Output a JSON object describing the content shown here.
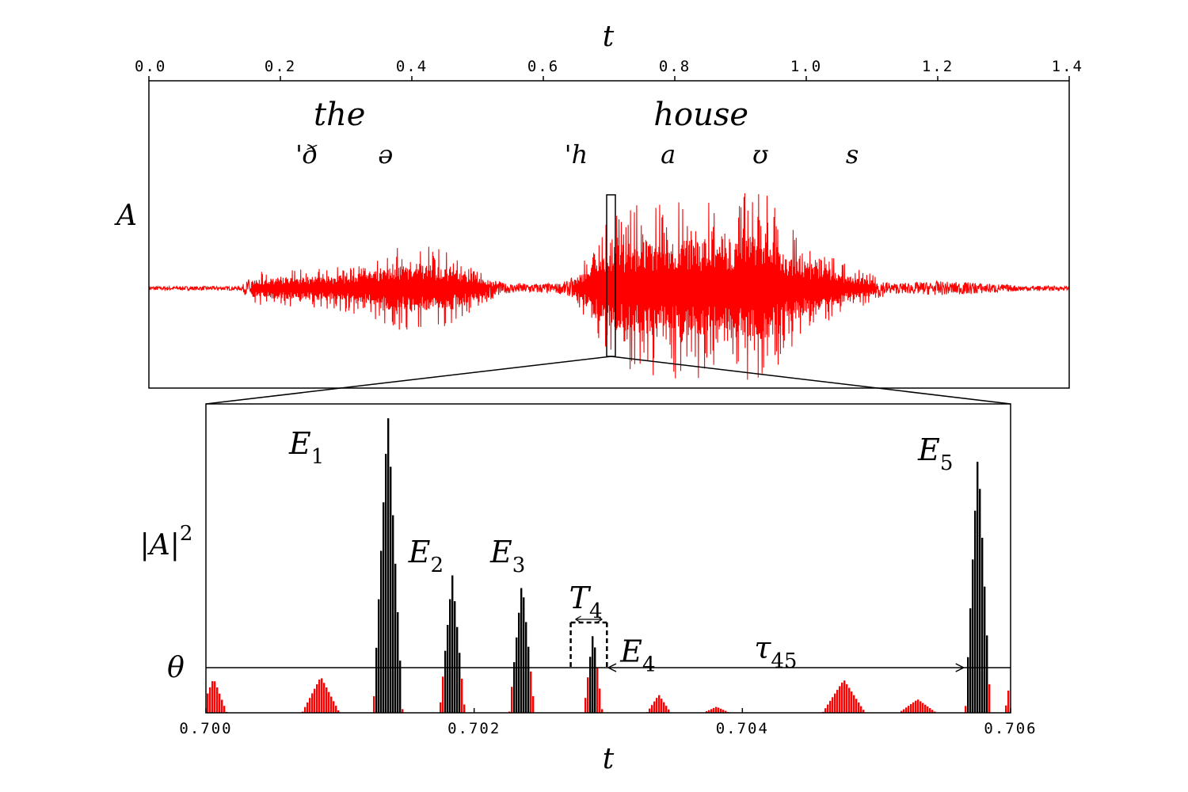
{
  "chart_data": [
    {
      "type": "line",
      "title": "",
      "xlabel": "t",
      "ylabel": "A",
      "xlim": [
        0.0,
        1.4
      ],
      "x_ticks": [
        "0.0",
        "0.2",
        "0.4",
        "0.6",
        "0.8",
        "1.0",
        "1.2",
        "1.4"
      ],
      "x_tick_values": [
        0.0,
        0.2,
        0.4,
        0.6,
        0.8,
        1.0,
        1.2,
        1.4
      ],
      "series_color": "#ff0000",
      "words": [
        {
          "text": "the",
          "t": 0.29
        },
        {
          "text": "house",
          "t": 0.84
        }
      ],
      "phonemes": [
        {
          "text": "'ð",
          "t": 0.24
        },
        {
          "text": "ə",
          "t": 0.36
        },
        {
          "text": "'h",
          "t": 0.65
        },
        {
          "text": "a",
          "t": 0.79
        },
        {
          "text": "ʊ",
          "t": 0.93
        },
        {
          "text": "s",
          "t": 1.07
        }
      ],
      "envelope": [
        {
          "t": 0.0,
          "a": 0.02
        },
        {
          "t": 0.14,
          "a": 0.02
        },
        {
          "t": 0.16,
          "a": 0.15
        },
        {
          "t": 0.2,
          "a": 0.18
        },
        {
          "t": 0.28,
          "a": 0.2
        },
        {
          "t": 0.33,
          "a": 0.26
        },
        {
          "t": 0.36,
          "a": 0.36
        },
        {
          "t": 0.41,
          "a": 0.4
        },
        {
          "t": 0.45,
          "a": 0.35
        },
        {
          "t": 0.5,
          "a": 0.18
        },
        {
          "t": 0.54,
          "a": 0.05
        },
        {
          "t": 0.62,
          "a": 0.05
        },
        {
          "t": 0.64,
          "a": 0.08
        },
        {
          "t": 0.66,
          "a": 0.25
        },
        {
          "t": 0.68,
          "a": 0.5
        },
        {
          "t": 0.71,
          "a": 0.7
        },
        {
          "t": 0.75,
          "a": 0.78
        },
        {
          "t": 0.81,
          "a": 0.82
        },
        {
          "t": 0.88,
          "a": 0.8
        },
        {
          "t": 0.91,
          "a": 0.88
        },
        {
          "t": 0.94,
          "a": 0.86
        },
        {
          "t": 0.97,
          "a": 0.58
        },
        {
          "t": 1.01,
          "a": 0.4
        },
        {
          "t": 1.06,
          "a": 0.22
        },
        {
          "t": 1.1,
          "a": 0.13
        },
        {
          "t": 1.13,
          "a": 0.05
        },
        {
          "t": 1.2,
          "a": 0.07
        },
        {
          "t": 1.25,
          "a": 0.06
        },
        {
          "t": 1.32,
          "a": 0.03
        },
        {
          "t": 1.4,
          "a": 0.02
        }
      ],
      "highlight_window": [
        0.7,
        0.706
      ]
    },
    {
      "type": "bar",
      "title": "",
      "xlabel": "t",
      "ylabel": "|A|",
      "ylabel_superscript": "2",
      "xlim": [
        0.7,
        0.706
      ],
      "x_ticks": [
        "0.700",
        "0.702",
        "0.704",
        "0.706"
      ],
      "x_tick_values": [
        0.7,
        0.702,
        0.704,
        0.706
      ],
      "threshold_label": "θ",
      "threshold": 0.15,
      "below_color": "#ff0000",
      "above_color": "#000000",
      "peaks": [
        {
          "t": 0.70005,
          "h": 0.115,
          "w": 0.0001
        },
        {
          "t": 0.70085,
          "h": 0.12,
          "w": 0.00014
        },
        {
          "t": 0.70135,
          "h": 1.0,
          "w": 0.00011
        },
        {
          "t": 0.70183,
          "h": 0.46,
          "w": 9.5e-05
        },
        {
          "t": 0.70235,
          "h": 0.44,
          "w": 9.5e-05
        },
        {
          "t": 0.70288,
          "h": 0.27,
          "w": 7e-05
        },
        {
          "t": 0.70337,
          "h": 0.06,
          "w": 9e-05
        },
        {
          "t": 0.7038,
          "h": 0.02,
          "w": 0.0001
        },
        {
          "t": 0.70475,
          "h": 0.11,
          "w": 0.00016
        },
        {
          "t": 0.7053,
          "h": 0.045,
          "w": 0.00014
        },
        {
          "t": 0.70575,
          "h": 0.87,
          "w": 9.5e-05
        },
        {
          "t": 0.706,
          "h": 0.14,
          "w": 5e-05
        }
      ],
      "event_labels": [
        {
          "name": "E",
          "sub": "1",
          "t": 0.70062,
          "y": 0.86
        },
        {
          "name": "E",
          "sub": "2",
          "t": 0.70151,
          "y": 0.5
        },
        {
          "name": "E",
          "sub": "3",
          "t": 0.70212,
          "y": 0.5
        },
        {
          "name": "E",
          "sub": "4",
          "t": 0.70309,
          "y": 0.17
        },
        {
          "name": "E",
          "sub": "5",
          "t": 0.70531,
          "y": 0.84
        }
      ],
      "duration_label": {
        "name": "T",
        "sub": "4",
        "t_start": 0.70272,
        "t_end": 0.70299
      },
      "interval_label": {
        "name": "τ",
        "sub": "45",
        "t_start": 0.703,
        "t_end": 0.70565
      }
    }
  ]
}
